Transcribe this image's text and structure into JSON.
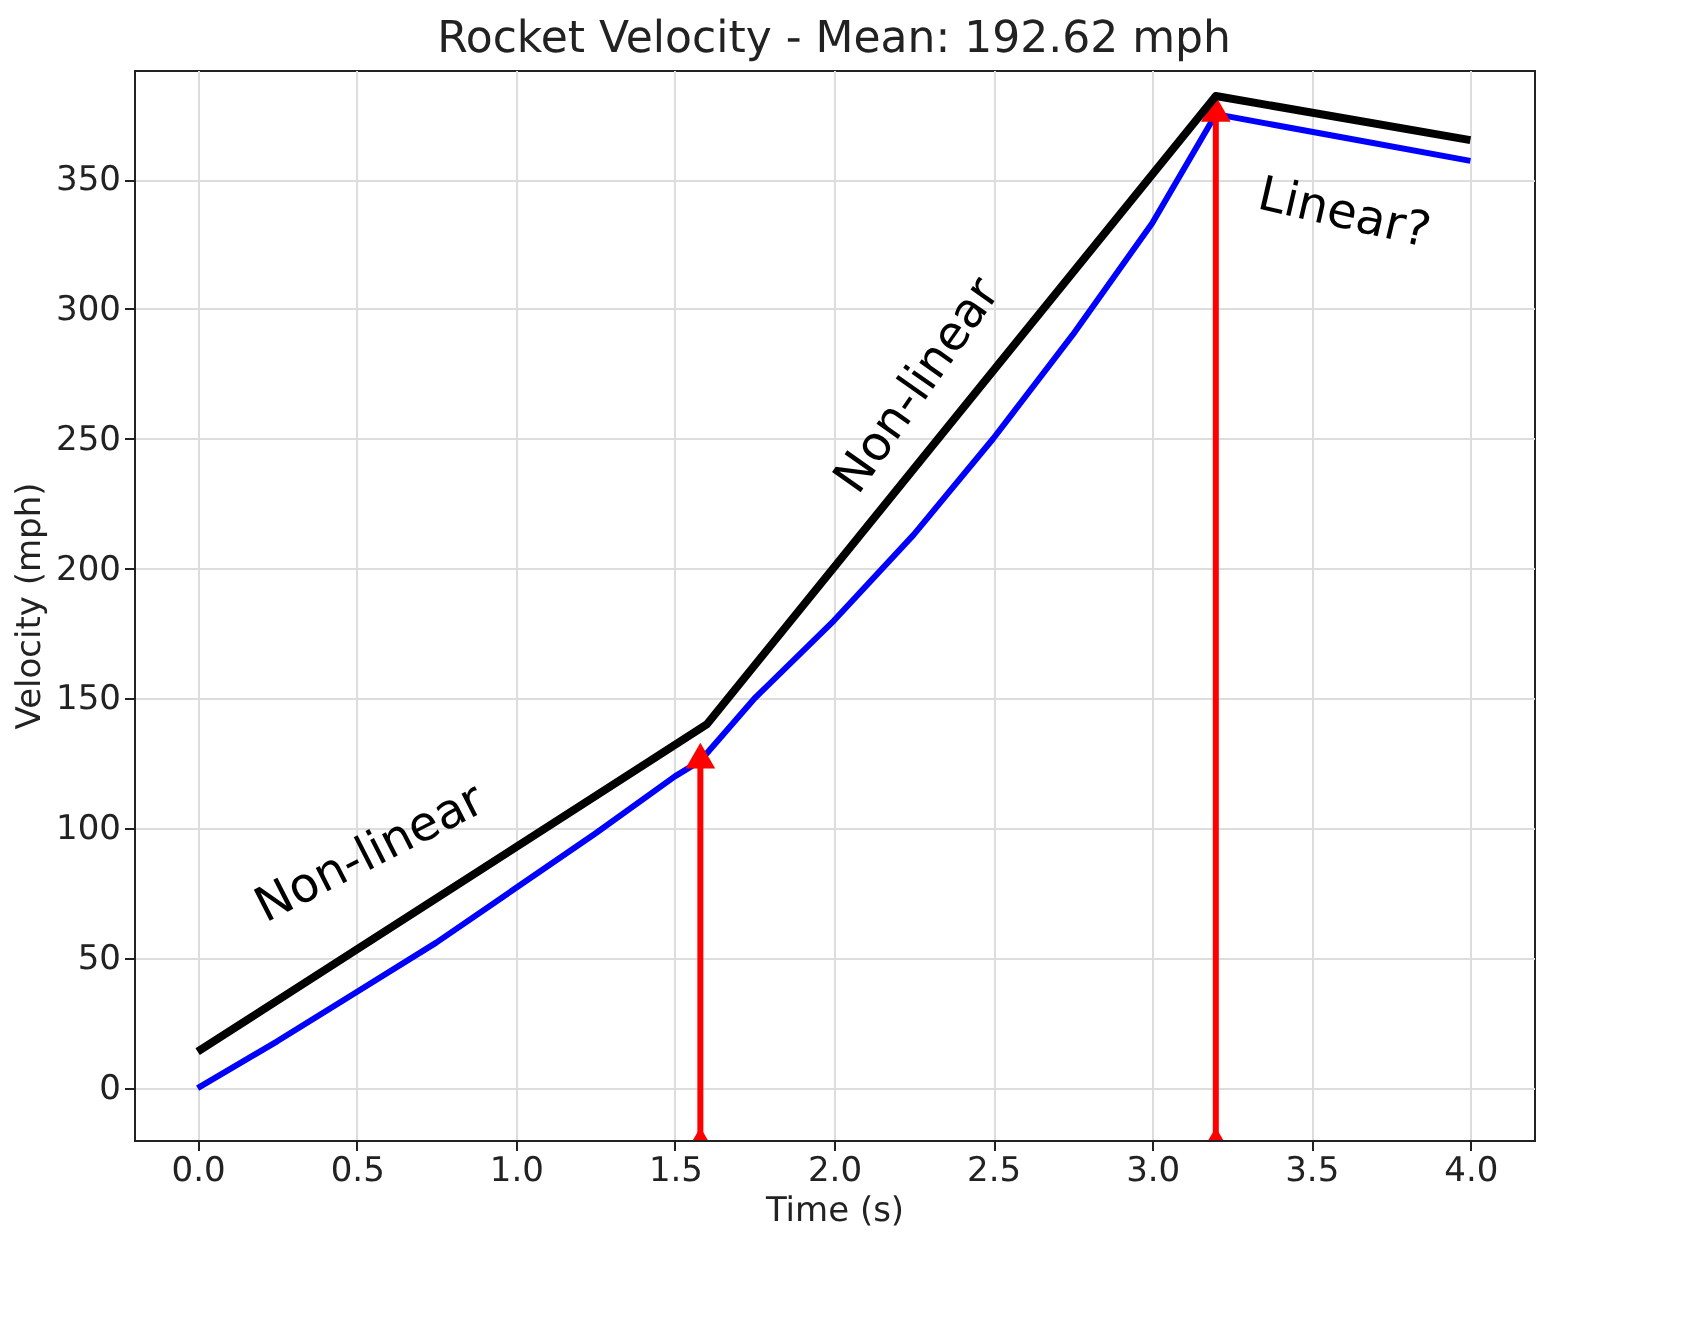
{
  "chart_data": {
    "type": "line",
    "title": "Rocket Velocity - Mean: 192.62 mph",
    "xlabel": "Time (s)",
    "ylabel": "Velocity (mph)",
    "xlim": [
      -0.2,
      4.2
    ],
    "xticks": [
      {
        "value": 0,
        "label": "0.0"
      },
      0.5,
      {
        "value": 1,
        "label": "1.0"
      },
      1.5,
      {
        "value": 2,
        "label": "2.0"
      },
      2.5,
      {
        "value": 3,
        "label": "3.0"
      },
      3.5,
      {
        "value": 4,
        "label": "4.0"
      }
    ],
    "ylim": [
      -20,
      392
    ],
    "yticks": [
      0,
      50,
      100,
      150,
      200,
      250,
      300,
      350
    ],
    "grid": true,
    "line_style": "solid",
    "series": [
      {
        "color": "#0000ff",
        "x": [
          0,
          0.25,
          0.5,
          0.75,
          1.0,
          1.25,
          1.5,
          1.58,
          1.75,
          2.0,
          2.25,
          2.5,
          2.75,
          3.0,
          3.2,
          3.6,
          4.0
        ],
        "values": [
          0,
          18,
          37,
          56,
          77,
          98,
          120,
          126,
          150,
          180,
          213,
          250,
          290,
          333,
          375,
          366,
          357
        ]
      },
      {
        "color": "#000000",
        "x": [
          0,
          1.6,
          3.2,
          4.0
        ],
        "values": [
          14,
          140,
          382,
          365
        ]
      },
      {
        "color": "#ff0000",
        "marker": "triangle",
        "x": [
          1.58,
          1.58
        ],
        "values": [
          -20,
          128
        ]
      },
      {
        "color": "#ff0000",
        "marker": "triangle",
        "x": [
          3.2,
          3.2
        ],
        "values": [
          -20,
          377
        ]
      }
    ],
    "annotations": [
      "Non-linear",
      "Non-linear",
      "Linear?"
    ]
  }
}
